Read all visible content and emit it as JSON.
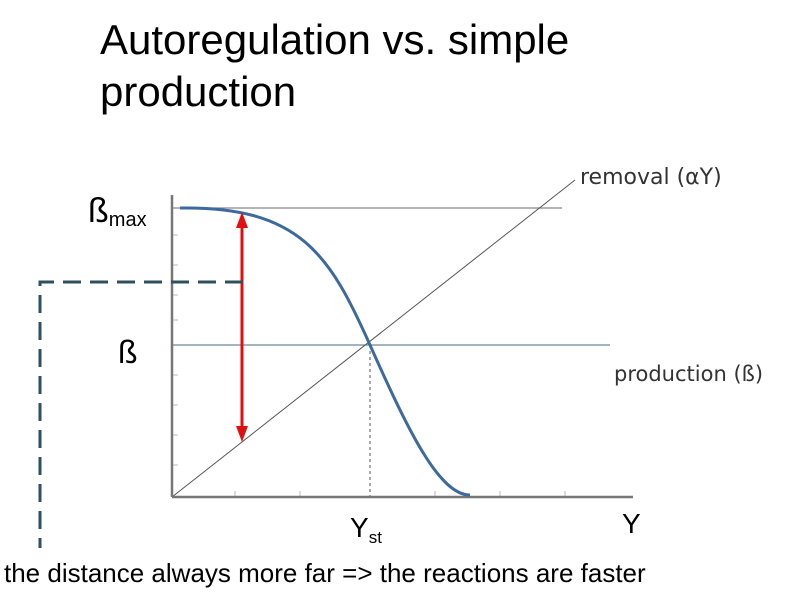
{
  "title": "Autoregulation vs. simple production",
  "beta_max": {
    "symbol": "ß",
    "subscript": "max"
  },
  "beta": "ß",
  "removal_label": "removal (αY)",
  "production_label": "production (ß)",
  "y_steady": {
    "symbol": "Y",
    "subscript": "st"
  },
  "x_axis_label": "Y",
  "footer": "the distance always more far => the reactions are faster"
}
